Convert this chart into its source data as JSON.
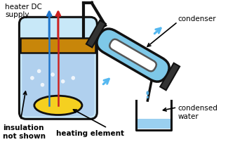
{
  "bg_color": "#ffffff",
  "beaker_fill": "#c8e8f8",
  "beaker_outline": "#111111",
  "lid_color": "#c8860a",
  "liquid_color": "#b0d0ee",
  "heater_color": "#f5d020",
  "condenser_fill": "#7ec8e8",
  "condenser_outline": "#111111",
  "tube_color": "#111111",
  "arrow_blue": "#55b8f0",
  "arrow_blue2": "#2277cc",
  "arrow_red": "#cc2222",
  "water_color": "#9ad0f0",
  "drop_color": "#55aadd",
  "text_color": "#000000",
  "label_heater_dc": "heater DC\nsupply",
  "label_insulation": "insulation\nnot shown",
  "label_heating": "heating element",
  "label_condenser": "condenser",
  "label_condensed": "condensed\nwater"
}
